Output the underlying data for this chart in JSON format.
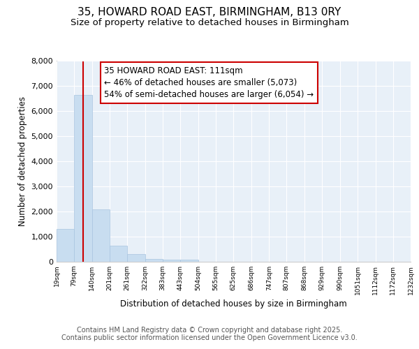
{
  "title1": "35, HOWARD ROAD EAST, BIRMINGHAM, B13 0RY",
  "title2": "Size of property relative to detached houses in Birmingham",
  "xlabel": "Distribution of detached houses by size in Birmingham",
  "ylabel": "Number of detached properties",
  "bar_color": "#c8ddf0",
  "bar_edgecolor": "#a8c4e0",
  "vline_color": "#cc0000",
  "vline_x": 111,
  "annotation_text": "35 HOWARD ROAD EAST: 111sqm\n← 46% of detached houses are smaller (5,073)\n54% of semi-detached houses are larger (6,054) →",
  "annotation_box_color": "#cc0000",
  "bin_edges": [
    19,
    79,
    140,
    201,
    261,
    322,
    383,
    443,
    504,
    565,
    625,
    686,
    747,
    807,
    868,
    929,
    990,
    1051,
    1112,
    1172,
    1232
  ],
  "bar_heights": [
    1320,
    6650,
    2080,
    640,
    305,
    125,
    70,
    70,
    0,
    0,
    0,
    0,
    0,
    0,
    0,
    0,
    0,
    0,
    0,
    0
  ],
  "xlim": [
    19,
    1232
  ],
  "ylim": [
    0,
    8000
  ],
  "yticks": [
    0,
    1000,
    2000,
    3000,
    4000,
    5000,
    6000,
    7000,
    8000
  ],
  "bg_color": "#ffffff",
  "plot_bg_color": "#e8f0f8",
  "footer1": "Contains HM Land Registry data © Crown copyright and database right 2025.",
  "footer2": "Contains public sector information licensed under the Open Government Licence v3.0.",
  "title_fontsize": 11,
  "subtitle_fontsize": 9.5,
  "footer_fontsize": 7,
  "annotation_fontsize": 8.5
}
